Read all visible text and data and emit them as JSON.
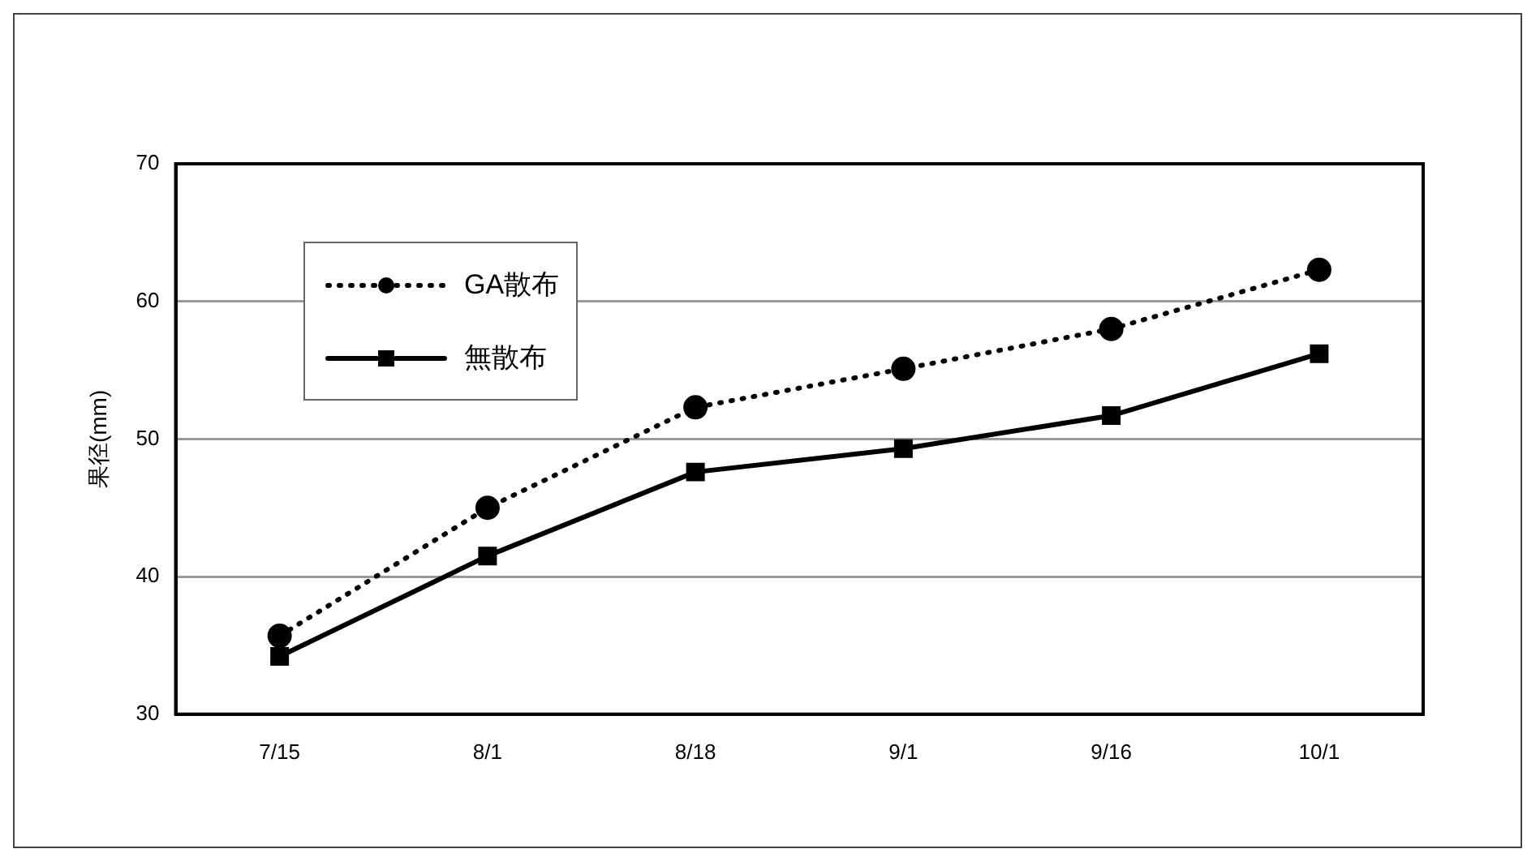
{
  "chart_data": {
    "type": "line",
    "ylabel": "果径(mm)",
    "categories": [
      "7/15",
      "8/1",
      "8/18",
      "9/1",
      "9/16",
      "10/1"
    ],
    "series": [
      {
        "name": "GA散布",
        "color": "#000000",
        "marker": "circle",
        "line_style": "dotted",
        "values": [
          35.7,
          45.0,
          52.3,
          55.1,
          58.0,
          62.3
        ]
      },
      {
        "name": "無散布",
        "color": "#000000",
        "marker": "square",
        "line_style": "solid",
        "values": [
          34.2,
          41.5,
          47.6,
          49.3,
          51.7,
          56.2
        ]
      }
    ],
    "ylim": [
      30,
      70
    ],
    "yticks": [
      30,
      40,
      50,
      60,
      70
    ],
    "grid": "y",
    "legend": "top left"
  }
}
